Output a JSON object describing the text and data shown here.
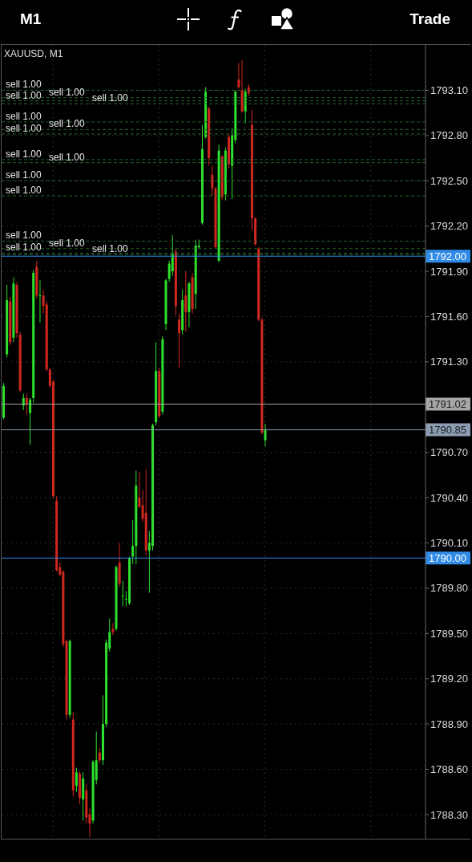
{
  "chart_data": {
    "type": "candlestick",
    "title": "XAUUSD, M1",
    "categories": [
      null,
      null,
      null,
      null,
      null,
      null,
      null,
      null,
      null,
      null,
      null,
      null,
      null,
      null,
      null,
      null,
      null,
      null,
      null,
      null,
      null,
      null,
      null,
      null,
      null,
      null,
      null,
      null,
      null,
      null,
      null,
      null,
      null,
      null,
      null,
      null,
      null,
      null,
      null,
      null,
      null,
      null,
      null,
      null,
      null,
      null,
      null,
      null,
      null,
      null,
      null,
      null,
      null,
      null,
      null,
      null,
      null,
      null,
      null,
      null,
      null,
      null,
      null,
      null,
      null,
      null,
      null,
      null,
      null,
      null,
      null,
      null,
      null,
      null,
      null,
      null,
      null,
      null,
      null,
      null,
      null,
      null,
      null,
      null,
      null,
      null,
      null,
      null,
      null,
      null,
      null,
      null,
      null,
      null,
      null,
      null,
      null,
      null,
      null,
      null,
      null,
      null,
      null,
      null,
      null,
      null,
      null,
      null,
      null,
      null,
      null,
      null,
      null,
      null,
      null,
      null,
      null,
      null,
      null,
      null,
      null,
      null,
      null,
      null,
      null,
      null,
      null,
      null
    ],
    "ohlc": [
      [
        1790.93,
        1791.16,
        1790.92,
        1791.14
      ],
      [
        1791.35,
        1791.81,
        1791.33,
        1791.71
      ],
      [
        1791.7,
        1791.73,
        1791.41,
        1791.43
      ],
      [
        1791.46,
        1791.86,
        1791.43,
        1791.82
      ],
      [
        1791.81,
        1791.83,
        1791.46,
        1791.49
      ],
      [
        1791.48,
        1791.5,
        1791.1,
        1791.11
      ],
      [
        1791.01,
        1791.09,
        1790.98,
        1791.06
      ],
      [
        1791.06,
        1791.09,
        1790.95,
        1791.02
      ],
      [
        1790.96,
        1791.06,
        1790.75,
        1791.05
      ],
      [
        1791.06,
        1791.91,
        1791.03,
        1791.89
      ],
      [
        1791.93,
        1791.97,
        1791.72,
        1791.74
      ],
      [
        1791.74,
        1791.84,
        1791.56,
        1791.74
      ],
      [
        1791.74,
        1791.78,
        1791.62,
        1791.67
      ],
      [
        1791.68,
        1791.7,
        1791.24,
        1791.25
      ],
      [
        1791.25,
        1791.26,
        1791.13,
        1791.14
      ],
      [
        1791.17,
        1791.18,
        1790.4,
        1790.41
      ],
      [
        1790.38,
        1790.41,
        1789.91,
        1789.92
      ],
      [
        1789.94,
        1789.97,
        1789.88,
        1789.89
      ],
      [
        1789.91,
        1789.92,
        1789.41,
        1789.43
      ],
      [
        1789.45,
        1789.46,
        1788.93,
        1788.96
      ],
      [
        1788.96,
        1789.46,
        1788.94,
        1789.45
      ],
      [
        1788.93,
        1788.98,
        1788.42,
        1788.46
      ],
      [
        1788.49,
        1788.61,
        1788.45,
        1788.58
      ],
      [
        1788.57,
        1788.59,
        1788.37,
        1788.41
      ],
      [
        1788.4,
        1788.58,
        1788.26,
        1788.54
      ],
      [
        1788.46,
        1788.5,
        1788.24,
        1788.28
      ],
      [
        1788.3,
        1788.34,
        1788.15,
        1788.24
      ],
      [
        1788.26,
        1788.66,
        1788.24,
        1788.65
      ],
      [
        1788.53,
        1788.85,
        1788.5,
        1788.66
      ],
      [
        1788.71,
        1788.74,
        1788.64,
        1788.66
      ],
      [
        1788.66,
        1789.09,
        1788.63,
        1788.9
      ],
      [
        1788.9,
        1789.46,
        1788.88,
        1789.44
      ],
      [
        1789.4,
        1789.6,
        1789.38,
        1789.51
      ],
      [
        1789.53,
        1789.57,
        1789.49,
        1789.51
      ],
      [
        1789.53,
        1789.95,
        1789.52,
        1789.94
      ],
      [
        1789.97,
        1790.1,
        1789.81,
        1789.83
      ],
      [
        1789.75,
        1789.85,
        1789.68,
        1789.75
      ],
      [
        1789.73,
        1789.78,
        1789.68,
        1789.73
      ],
      [
        1789.7,
        1790.01,
        1789.69,
        1790.0
      ],
      [
        1790.01,
        1790.25,
        1789.96,
        1790.08
      ],
      [
        1790.08,
        1790.58,
        1789.96,
        1790.48
      ],
      [
        1790.4,
        1790.57,
        1790.33,
        1790.34
      ],
      [
        1790.35,
        1790.45,
        1790.24,
        1790.26
      ],
      [
        1790.3,
        1790.59,
        1790.02,
        1790.05
      ],
      [
        1790.05,
        1790.18,
        1789.77,
        1790.1
      ],
      [
        1790.08,
        1790.89,
        1790.05,
        1790.88
      ],
      [
        1790.9,
        1791.43,
        1790.88,
        1791.24
      ],
      [
        1791.24,
        1791.26,
        1790.93,
        1790.94
      ],
      [
        1790.97,
        1791.47,
        1790.95,
        1791.45
      ],
      [
        1791.55,
        1791.85,
        1791.51,
        1791.84
      ],
      [
        1791.85,
        1791.97,
        1791.83,
        1791.95
      ],
      [
        1791.9,
        1792.14,
        1791.87,
        1792.02
      ],
      [
        1792.03,
        1792.05,
        1791.61,
        1791.67
      ],
      [
        1791.58,
        1791.62,
        1791.26,
        1791.49
      ],
      [
        1791.51,
        1791.78,
        1791.48,
        1791.71
      ],
      [
        1791.74,
        1791.9,
        1791.5,
        1791.63
      ],
      [
        1791.63,
        1791.83,
        1791.53,
        1791.82
      ],
      [
        1791.86,
        1791.89,
        1791.62,
        1791.65
      ],
      [
        1791.75,
        1792.11,
        1791.65,
        1792.07
      ],
      [
        1792.06,
        1792.11,
        1792.05,
        1792.07
      ],
      [
        1792.22,
        1792.87,
        1792.21,
        1792.71
      ],
      [
        1792.79,
        1793.12,
        1792.78,
        1793.09
      ],
      [
        1792.98,
        1792.99,
        1792.6,
        1792.65
      ],
      [
        1792.54,
        1792.6,
        1792.4,
        1792.45
      ],
      [
        1792.45,
        1792.46,
        1792.05,
        1792.06
      ],
      [
        1791.97,
        1792.74,
        1791.96,
        1792.7
      ],
      [
        1792.66,
        1792.67,
        1792.37,
        1792.39
      ],
      [
        1792.41,
        1792.72,
        1792.37,
        1792.7
      ],
      [
        1792.79,
        1792.81,
        1792.58,
        1792.61
      ],
      [
        1792.6,
        1792.85,
        1792.38,
        1792.8
      ],
      [
        1792.77,
        1793.1,
        1792.75,
        1793.09
      ],
      [
        1793.17,
        1793.28,
        1793.11,
        1793.12
      ],
      [
        1793.1,
        1793.3,
        1792.95,
        1792.96
      ],
      [
        1792.96,
        1793.11,
        1792.88,
        1793.09
      ],
      [
        1793.12,
        1793.14,
        1793.06,
        1793.08
      ],
      [
        1792.87,
        1792.97,
        1792.17,
        1792.25
      ],
      [
        1792.25,
        1792.26,
        1792.07,
        1792.08
      ],
      [
        1792.05,
        1792.06,
        1791.57,
        1791.58
      ],
      [
        1791.58,
        1791.59,
        1790.82,
        1790.83
      ],
      [
        1790.78,
        1790.89,
        1790.74,
        1790.85
      ],
      null,
      null,
      null,
      null,
      null,
      null,
      null,
      null,
      null,
      null,
      null,
      null,
      null,
      null,
      null,
      null,
      null,
      null,
      null,
      null,
      null,
      null,
      null,
      null,
      null,
      null,
      null,
      null,
      null,
      null,
      null,
      null,
      null,
      null,
      null,
      null,
      null,
      null,
      null,
      null,
      null,
      null,
      null,
      null,
      null,
      null,
      null,
      null
    ],
    "colors": [
      "#2ee02e",
      "#2ee02e",
      "#d0281e",
      "#2ee02e",
      "#d0281e",
      "#d0281e",
      "#2ee02e",
      "#d0281e",
      "#2ee02e",
      "#2ee02e",
      "#d0281e",
      "#2ee02e",
      "#d0281e",
      "#d0281e",
      "#d0281e",
      "#d0281e",
      "#d0281e",
      "#d0281e",
      "#d0281e",
      "#d0281e",
      "#2ee02e",
      "#d0281e",
      "#2ee02e",
      "#d0281e",
      "#2ee02e",
      "#d0281e",
      "#d0281e",
      "#2ee02e",
      "#2ee02e",
      "#d0281e",
      "#2ee02e",
      "#2ee02e",
      "#2ee02e",
      "#d0281e",
      "#2ee02e",
      "#d0281e",
      "#2ee02e",
      "#2ee02e",
      "#2ee02e",
      "#2ee02e",
      "#2ee02e",
      "#d0281e",
      "#d0281e",
      "#d0281e",
      "#2ee02e",
      "#2ee02e",
      "#2ee02e",
      "#d0281e",
      "#2ee02e",
      "#2ee02e",
      "#2ee02e",
      "#2ee02e",
      "#d0281e",
      "#d0281e",
      "#2ee02e",
      "#d0281e",
      "#2ee02e",
      "#d0281e",
      "#2ee02e",
      "#2ee02e",
      "#2ee02e",
      "#2ee02e",
      "#d0281e",
      "#d0281e",
      "#d0281e",
      "#2ee02e",
      "#d0281e",
      "#2ee02e",
      "#d0281e",
      "#2ee02e",
      "#2ee02e",
      "#d0281e",
      "#d0281e",
      "#2ee02e",
      "#d0281e",
      "#d0281e",
      "#d0281e",
      "#d0281e",
      "#d0281e",
      "#2ee02e",
      null,
      null,
      null,
      null,
      null,
      null,
      null,
      null,
      null,
      null,
      null,
      null,
      null,
      null,
      null,
      null,
      null,
      null,
      null,
      null,
      null,
      null,
      null,
      null,
      null,
      null,
      null,
      null,
      null,
      null,
      null,
      null,
      null,
      null,
      null,
      null,
      null,
      null,
      null,
      null,
      null,
      null,
      null,
      null,
      null,
      null,
      null,
      null
    ],
    "ylim": [
      1788.14,
      1793.4
    ],
    "yticks": [
      {
        "value": 1788.3,
        "label": "1788.30"
      },
      {
        "value": 1788.6,
        "label": "1788.60"
      },
      {
        "value": 1788.9,
        "label": "1788.90"
      },
      {
        "value": 1789.2,
        "label": "1789.20"
      },
      {
        "value": 1789.5,
        "label": "1789.50"
      },
      {
        "value": 1789.8,
        "label": "1789.80"
      },
      {
        "value": 1790.1,
        "label": "1790.10"
      },
      {
        "value": 1790.4,
        "label": "1790.40"
      },
      {
        "value": 1790.7,
        "label": "1790.70"
      },
      {
        "value": 1791.3,
        "label": "1791.30"
      },
      {
        "value": 1791.6,
        "label": "1791.60"
      },
      {
        "value": 1791.9,
        "label": "1791.90"
      },
      {
        "value": 1792.2,
        "label": "1792.20"
      },
      {
        "value": 1792.5,
        "label": "1792.50"
      },
      {
        "value": 1792.8,
        "label": "1792.80"
      },
      {
        "value": 1793.1,
        "label": "1793.10"
      }
    ],
    "tick_labels": "y",
    "grid": true,
    "ref_lines": [
      {
        "axis": "y",
        "value": 1793.1,
        "label": "sell 1.00",
        "color": "#24652e",
        "line_style": "dashed"
      },
      {
        "axis": "y",
        "value": 1793.05,
        "label": "sell 1.00",
        "color": "#24652e",
        "line_style": "dashed"
      },
      {
        "axis": "y",
        "value": 1793.03,
        "label": "sell 1.00",
        "color": "#24652e",
        "line_style": "dashed"
      },
      {
        "axis": "y",
        "value": 1793.01,
        "label": "sell 1.00",
        "color": "#24652e",
        "line_style": "dashed"
      },
      {
        "axis": "y",
        "value": 1792.89,
        "label": "sell 1.00",
        "color": "#24652e",
        "line_style": "dashed"
      },
      {
        "axis": "y",
        "value": 1792.84,
        "label": "sell 1.00",
        "color": "#24652e",
        "line_style": "dashed"
      },
      {
        "axis": "y",
        "value": 1792.81,
        "label": "sell 1.00",
        "color": "#24652e",
        "line_style": "dashed"
      },
      {
        "axis": "y",
        "value": 1792.64,
        "label": "sell 1.00",
        "color": "#24652e",
        "line_style": "dashed"
      },
      {
        "axis": "y",
        "value": 1792.62,
        "label": "sell 1.00",
        "color": "#24652e",
        "line_style": "dashed"
      },
      {
        "axis": "y",
        "value": 1792.5,
        "label": "sell 1.00",
        "color": "#24652e",
        "line_style": "dashed"
      },
      {
        "axis": "y",
        "value": 1792.4,
        "label": "sell 1.00",
        "color": "#24652e",
        "line_style": "dashed"
      },
      {
        "axis": "y",
        "value": 1792.1,
        "label": "sell 1.00",
        "color": "#24652e",
        "line_style": "dashed"
      },
      {
        "axis": "y",
        "value": 1792.05,
        "label": "sell 1.00",
        "color": "#24652e",
        "line_style": "dashed"
      },
      {
        "axis": "y",
        "value": 1792.02,
        "label": "sell 1.00",
        "color": "#24652e",
        "line_style": "dashed"
      },
      {
        "axis": "y",
        "value": 1792.01,
        "label": "sell 1.00",
        "color": "#24652e",
        "line_style": "dashed"
      },
      {
        "axis": "y",
        "value": 1792.0,
        "label": "1792.00",
        "color": "#2f8be6",
        "line_style": "solid"
      },
      {
        "axis": "y",
        "value": 1791.02,
        "label": "1791.02",
        "color": "#a6a6a6",
        "line_style": "solid"
      },
      {
        "axis": "y",
        "value": 1790.85,
        "label": "1790.85",
        "color": "#8c9db3",
        "line_style": "solid"
      },
      {
        "axis": "y",
        "value": 1790.0,
        "label": "1790.00",
        "color": "#2f8be6",
        "line_style": "solid"
      }
    ],
    "annotations": [
      "M1",
      "Trade"
    ]
  }
}
